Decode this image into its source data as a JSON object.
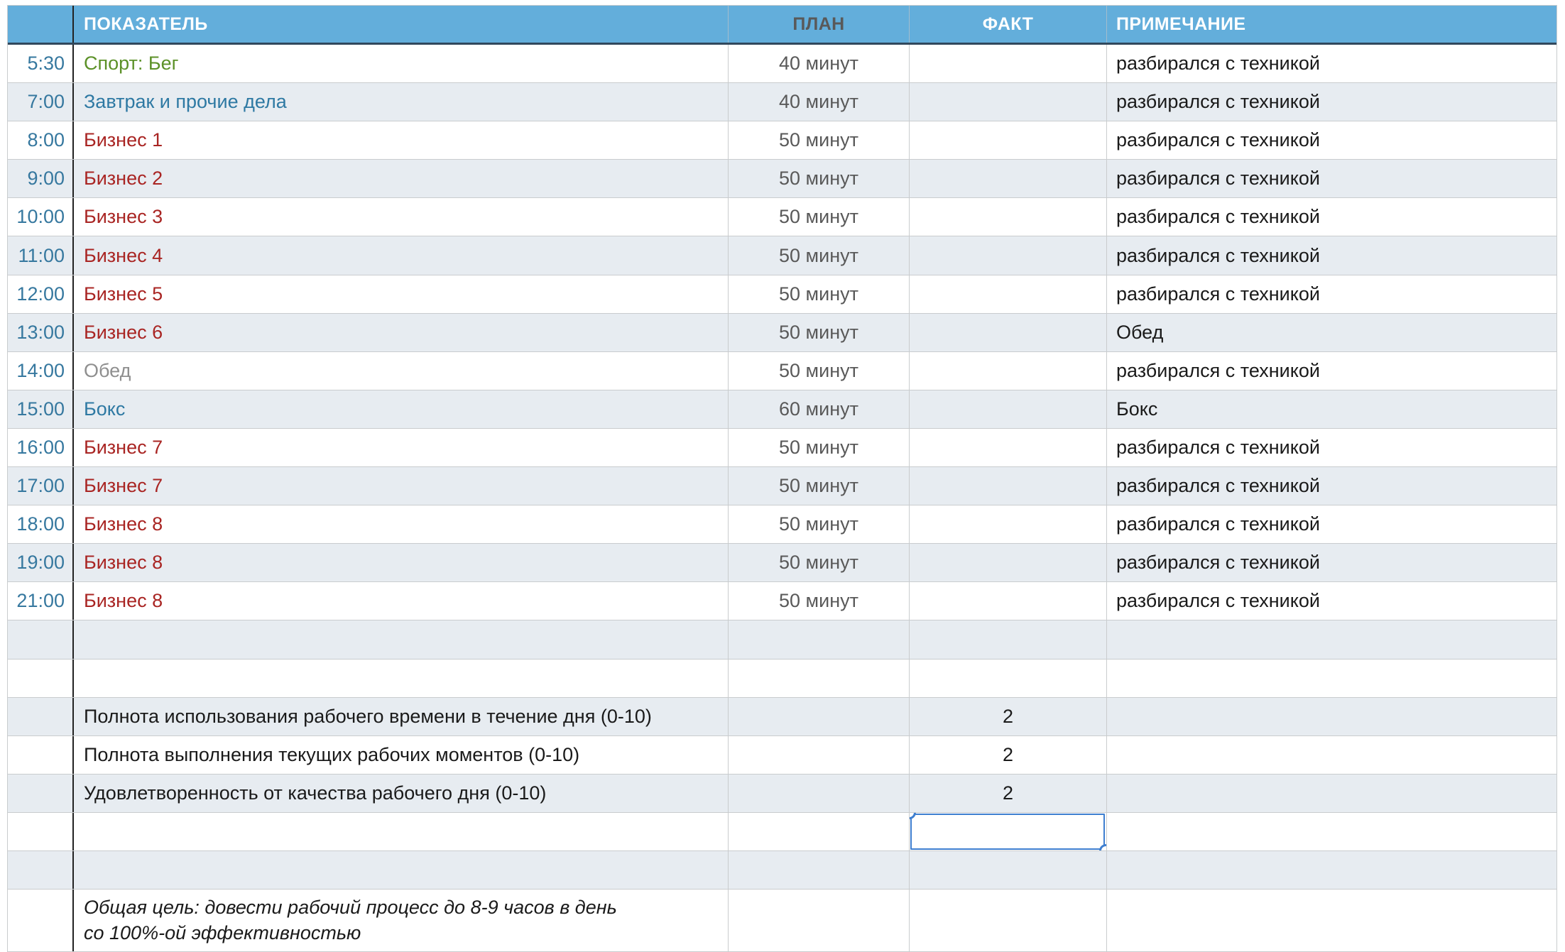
{
  "app_context": "spreadsheet-daily-schedule",
  "colors": {
    "header_bg": "#63AEDB",
    "header_text": "#FFFFFF",
    "header_underline": "#31485C",
    "grid_line": "#C9CCCE",
    "dark_column_divider": "#222222",
    "alt_row_bg": "#E7ECF1",
    "time_text": "#36789F",
    "plan_text": "#595959",
    "note_text": "#1A1A1A",
    "selection_blue": "#3F7FD0",
    "indicator_styles": {
      "green": "#5C9128",
      "blue": "#2E79A3",
      "red": "#A92523",
      "gray": "#8F8F8F",
      "black": "#1A1A1A"
    }
  },
  "table": {
    "columns": {
      "indicator": "ПОКАЗАТЕЛЬ",
      "plan": "ПЛАН",
      "fact": "ФАКТ",
      "note": "ПРИМЕЧАНИЕ"
    },
    "rows": [
      {
        "type": "schedule",
        "time": "5:30",
        "indicator": "Спорт: Бег",
        "style": "green",
        "plan": "40 минут",
        "fact": "",
        "note": "разбирался с техникой"
      },
      {
        "type": "schedule",
        "time": "7:00",
        "indicator": "Завтрак и прочие дела",
        "style": "blue",
        "plan": "40 минут",
        "fact": "",
        "note": "разбирался с техникой"
      },
      {
        "type": "schedule",
        "time": "8:00",
        "indicator": "Бизнес 1",
        "style": "red",
        "plan": "50 минут",
        "fact": "",
        "note": "разбирался с техникой"
      },
      {
        "type": "schedule",
        "time": "9:00",
        "indicator": "Бизнес 2",
        "style": "red",
        "plan": "50 минут",
        "fact": "",
        "note": "разбирался с техникой"
      },
      {
        "type": "schedule",
        "time": "10:00",
        "indicator": "Бизнес 3",
        "style": "red",
        "plan": "50 минут",
        "fact": "",
        "note": "разбирался с техникой"
      },
      {
        "type": "schedule",
        "time": "11:00",
        "indicator": "Бизнес 4",
        "style": "red",
        "plan": "50 минут",
        "fact": "",
        "note": "разбирался с техникой"
      },
      {
        "type": "schedule",
        "time": "12:00",
        "indicator": "Бизнес 5",
        "style": "red",
        "plan": "50 минут",
        "fact": "",
        "note": "разбирался с техникой"
      },
      {
        "type": "schedule",
        "time": "13:00",
        "indicator": "Бизнес 6",
        "style": "red",
        "plan": "50 минут",
        "fact": "",
        "note": "Обед"
      },
      {
        "type": "schedule",
        "time": "14:00",
        "indicator": "Обед",
        "style": "gray",
        "plan": "50 минут",
        "fact": "",
        "note": "разбирался с техникой"
      },
      {
        "type": "schedule",
        "time": "15:00",
        "indicator": "Бокс",
        "style": "blue",
        "plan": "60 минут",
        "fact": "",
        "note": "Бокс"
      },
      {
        "type": "schedule",
        "time": "16:00",
        "indicator": "Бизнес 7",
        "style": "red",
        "plan": "50 минут",
        "fact": "",
        "note": "разбирался с техникой"
      },
      {
        "type": "schedule",
        "time": "17:00",
        "indicator": "Бизнес 7",
        "style": "red",
        "plan": "50 минут",
        "fact": "",
        "note": "разбирался с техникой"
      },
      {
        "type": "schedule",
        "time": "18:00",
        "indicator": "Бизнес 8",
        "style": "red",
        "plan": "50 минут",
        "fact": "",
        "note": "разбирался с техникой"
      },
      {
        "type": "schedule",
        "time": "19:00",
        "indicator": "Бизнес 8",
        "style": "red",
        "plan": "50 минут",
        "fact": "",
        "note": "разбирался с техникой"
      },
      {
        "type": "schedule",
        "time": "21:00",
        "indicator": "Бизнес 8",
        "style": "red",
        "plan": "50 минут",
        "fact": "",
        "note": "разбирался с техникой"
      },
      {
        "type": "empty",
        "time": "",
        "indicator": "",
        "style": "black",
        "plan": "",
        "fact": "",
        "note": ""
      },
      {
        "type": "empty",
        "time": "",
        "indicator": "",
        "style": "black",
        "plan": "",
        "fact": "",
        "note": ""
      },
      {
        "type": "summary",
        "time": "",
        "indicator": "Полнота использования рабочего времени в течение дня (0-10)",
        "style": "black",
        "plan": "",
        "fact": "2",
        "note": ""
      },
      {
        "type": "summary",
        "time": "",
        "indicator": "Полнота выполнения текущих рабочих моментов (0-10)",
        "style": "black",
        "plan": "",
        "fact": "2",
        "note": ""
      },
      {
        "type": "summary",
        "time": "",
        "indicator": "Удовлетворенность от качества рабочего дня (0-10)",
        "style": "black",
        "plan": "",
        "fact": "2",
        "note": ""
      },
      {
        "type": "selected",
        "time": "",
        "indicator": "",
        "style": "black",
        "plan": "",
        "fact": "",
        "note": ""
      },
      {
        "type": "empty",
        "time": "",
        "indicator": "",
        "style": "black",
        "plan": "",
        "fact": "",
        "note": ""
      },
      {
        "type": "goal",
        "time": "",
        "indicator": "Общая цель: довести рабочий процесс до 8-9 часов в день со 100%-ой эффективностью",
        "style": "black",
        "plan": "",
        "fact": "",
        "note": ""
      }
    ],
    "selection": {
      "row_index": 20,
      "column": "fact",
      "value": ""
    }
  }
}
